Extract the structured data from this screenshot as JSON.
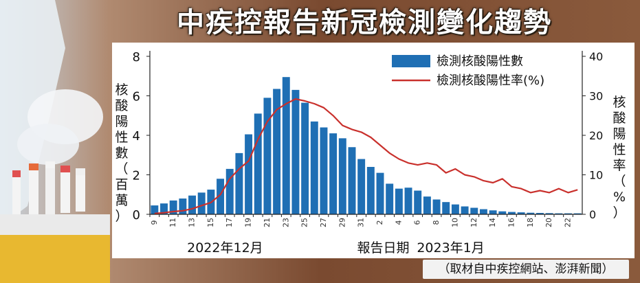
{
  "title": "中疾控報告新冠檢測變化趨勢",
  "source": "（取材自中疾控網站、澎湃新聞）",
  "colors": {
    "bar": "#1f6fb4",
    "line": "#c9302c",
    "background": "#8a5a3a"
  },
  "chart_data": {
    "type": "bar",
    "xlabel": "報告日期",
    "y_left_label": "核酸陽性數（百萬）",
    "y_right_label": "核酸陽性率（%）",
    "y_left_range": [
      0,
      8
    ],
    "y_right_range": [
      0,
      40
    ],
    "y_left_ticks": [
      0,
      2,
      4,
      6,
      8
    ],
    "y_right_ticks": [
      0,
      10,
      20,
      30,
      40
    ],
    "month_labels": [
      {
        "label": "2022年12月",
        "at_index": 8
      },
      {
        "label": "2023年1月",
        "at_index": 32
      }
    ],
    "legend": {
      "position": "top-right",
      "bar_name": "檢測核酸陽性數",
      "line_name": "檢測核酸陽性率(%)"
    },
    "categories": [
      "9",
      "10",
      "11",
      "12",
      "13",
      "14",
      "15",
      "16",
      "17",
      "18",
      "19",
      "20",
      "21",
      "22",
      "23",
      "24",
      "25",
      "26",
      "27",
      "28",
      "29",
      "30",
      "31",
      "1",
      "2",
      "3",
      "4",
      "5",
      "6",
      "7",
      "8",
      "9",
      "10",
      "11",
      "12",
      "13",
      "14",
      "15",
      "16",
      "17",
      "18",
      "19",
      "20",
      "21",
      "22",
      "23"
    ],
    "tick_labels": [
      "9",
      "",
      "11",
      "",
      "13",
      "",
      "15",
      "",
      "17",
      "",
      "19",
      "",
      "21",
      "",
      "23",
      "",
      "25",
      "",
      "27",
      "",
      "29",
      "",
      "31",
      "",
      "2",
      "",
      "4",
      "",
      "6",
      "",
      "8",
      "",
      "10",
      "",
      "12",
      "",
      "14",
      "",
      "16",
      "",
      "18",
      "",
      "20",
      "",
      "22",
      ""
    ],
    "series": [
      {
        "name": "檢測核酸陽性數",
        "kind": "bar",
        "values": [
          0.45,
          0.55,
          0.7,
          0.8,
          0.95,
          1.1,
          1.25,
          1.8,
          2.3,
          3.1,
          4.05,
          5.1,
          5.9,
          6.35,
          6.95,
          6.3,
          5.65,
          4.7,
          4.4,
          4.1,
          3.85,
          3.4,
          2.8,
          2.4,
          2.1,
          1.55,
          1.3,
          1.35,
          1.2,
          0.9,
          0.75,
          0.62,
          0.5,
          0.4,
          0.33,
          0.26,
          0.2,
          0.15,
          0.12,
          0.1,
          0.08,
          0.07,
          0.06,
          0.05,
          0.05,
          0.05
        ]
      },
      {
        "name": "檢測核酸陽性率(%)",
        "kind": "line",
        "values": [
          0.2,
          0.4,
          0.7,
          0.9,
          1.4,
          2.2,
          3.0,
          5.0,
          9.0,
          11.5,
          13.5,
          19.0,
          23.5,
          26.5,
          28.0,
          29.2,
          28.7,
          28.0,
          27.0,
          25.0,
          22.5,
          21.5,
          20.8,
          19.5,
          17.5,
          15.5,
          14.0,
          13.0,
          12.5,
          13.0,
          12.5,
          10.5,
          11.5,
          10.0,
          9.5,
          8.5,
          8.0,
          9.0,
          7.0,
          6.5,
          5.5,
          6.0,
          5.5,
          6.5,
          5.5,
          6.2
        ]
      }
    ]
  }
}
